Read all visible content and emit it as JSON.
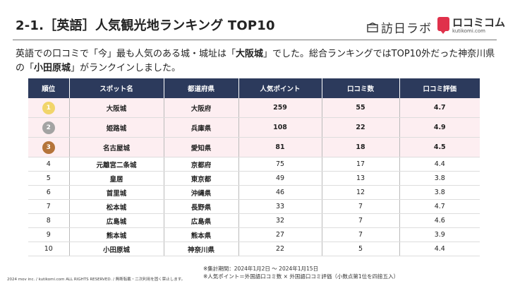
{
  "header": {
    "title": "2-1.［英語］人気観光地ランキング TOP10",
    "logo1_text": "訪日ラボ",
    "logo2_name": "ロコミコム",
    "logo2_sub": "kutikomi.com"
  },
  "intro": {
    "p1": "英語での口コミで「今」最も人気のある城・城址は「",
    "h1": "大阪城",
    "p2": "」でした。総合ランキングではTOP10外だった神奈川県の「",
    "h2": "小田原城",
    "p3": "」がランクインしました。"
  },
  "table": {
    "headers": [
      "順位",
      "スポット名",
      "都道府県",
      "人気ポイント",
      "口コミ数",
      "口コミ評価"
    ],
    "medal_colors": [
      "#f1d56a",
      "#a3a3a3",
      "#b5743a"
    ],
    "rows": [
      {
        "rank": "1",
        "name": "大阪城",
        "pref": "大阪府",
        "points": "259",
        "count": "55",
        "rating": "4.7"
      },
      {
        "rank": "2",
        "name": "姫路城",
        "pref": "兵庫県",
        "points": "108",
        "count": "22",
        "rating": "4.9"
      },
      {
        "rank": "3",
        "name": "名古屋城",
        "pref": "愛知県",
        "points": "81",
        "count": "18",
        "rating": "4.5"
      },
      {
        "rank": "4",
        "name": "元離宮二条城",
        "pref": "京都府",
        "points": "75",
        "count": "17",
        "rating": "4.4"
      },
      {
        "rank": "5",
        "name": "皇居",
        "pref": "東京都",
        "points": "49",
        "count": "13",
        "rating": "3.8"
      },
      {
        "rank": "6",
        "name": "首里城",
        "pref": "沖縄県",
        "points": "46",
        "count": "12",
        "rating": "3.8"
      },
      {
        "rank": "7",
        "name": "松本城",
        "pref": "長野県",
        "points": "33",
        "count": "7",
        "rating": "4.7"
      },
      {
        "rank": "8",
        "name": "広島城",
        "pref": "広島県",
        "points": "32",
        "count": "7",
        "rating": "4.6"
      },
      {
        "rank": "9",
        "name": "熊本城",
        "pref": "熊本県",
        "points": "27",
        "count": "7",
        "rating": "3.9"
      },
      {
        "rank": "10",
        "name": "小田原城",
        "pref": "神奈川県",
        "points": "22",
        "count": "5",
        "rating": "4.4"
      }
    ]
  },
  "notes": {
    "period": "※集計期間：2024年1月2日 〜 2024年1月15日",
    "formula": "※人気ポイント＝外国語口コミ数 × 外国語口コミ評価（小数点第1位を四捨五入）"
  },
  "footer": {
    "copyright": "2024 mov inc. / kutikomi.com ALL RIGHTS RESERVED. / 無断転載・二次利用を固く禁止します。"
  }
}
